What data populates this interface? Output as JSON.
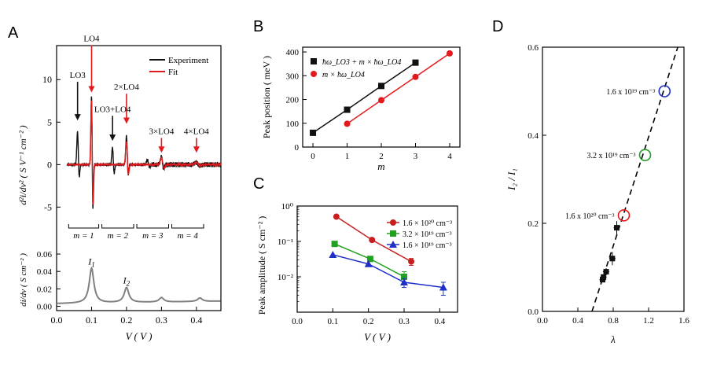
{
  "panels": {
    "a": "A",
    "b": "B",
    "c": "C",
    "d": "D"
  },
  "colors": {
    "black": "#111111",
    "red": "#e31a1c",
    "green": "#22a022",
    "blue": "#1f2fc8",
    "gray": "#808080"
  },
  "chart_data": [
    {
      "panel": "A (top)",
      "type": "line",
      "ylabel": "d²i/dv² ( S V⁻¹ cm⁻² )",
      "xlim": [
        0.0,
        0.47
      ],
      "ylim": [
        -7,
        14
      ],
      "yticks": [
        "-5",
        "0",
        "5",
        "10"
      ],
      "legend": [
        "Experiment",
        "Fit"
      ],
      "legend_position": "top-right",
      "series": [
        {
          "name": "Experiment",
          "color": "#111111",
          "peaks": [
            [
              0.06,
              4.0,
              0.003,
              -1.8
            ],
            [
              0.1,
              8.5,
              0.0025,
              -6.0
            ],
            [
              0.16,
              2.1,
              0.003,
              -1.2
            ],
            [
              0.2,
              3.5,
              0.003,
              -1.5
            ],
            [
              0.26,
              0.6,
              0.004,
              -0.4
            ],
            [
              0.3,
              1.0,
              0.004,
              -0.6
            ],
            [
              0.4,
              0.3,
              0.006,
              -0.2
            ]
          ]
        },
        {
          "name": "Fit",
          "color": "#e31a1c",
          "peaks": [
            [
              0.1,
              8.0,
              0.0028,
              -5.6
            ],
            [
              0.2,
              2.8,
              0.0035,
              -1.4
            ],
            [
              0.3,
              0.8,
              0.005,
              -0.5
            ],
            [
              0.4,
              0.25,
              0.007,
              -0.15
            ]
          ]
        }
      ],
      "annotations": [
        {
          "text": "LO4",
          "x": 0.1,
          "y": 14.5,
          "color": "#e31a1c",
          "arrow_to": 8.5
        },
        {
          "text": "LO3",
          "x": 0.06,
          "y": 10.2,
          "color": "#111111",
          "arrow_to": 5.2
        },
        {
          "text": "2×LO4",
          "x": 0.2,
          "y": 8.8,
          "color": "#e31a1c",
          "arrow_to": 4.8
        },
        {
          "text": "LO3+LO4",
          "x": 0.16,
          "y": 6.2,
          "color": "#111111",
          "arrow_to": 2.8
        },
        {
          "text": "3×LO4",
          "x": 0.3,
          "y": 3.6,
          "color": "#e31a1c",
          "arrow_to": 1.4
        },
        {
          "text": "4×LO4",
          "x": 0.4,
          "y": 3.6,
          "color": "#e31a1c",
          "arrow_to": 1.4
        }
      ],
      "brackets": [
        {
          "label": "m = 1",
          "x0": 0.03,
          "x1": 0.125
        },
        {
          "label": "m = 2",
          "x0": 0.125,
          "x1": 0.225
        },
        {
          "label": "m = 3",
          "x0": 0.225,
          "x1": 0.325
        },
        {
          "label": "m = 4",
          "x0": 0.325,
          "x1": 0.425
        }
      ]
    },
    {
      "panel": "A (bottom)",
      "type": "line",
      "xlabel": "V ( V )",
      "ylabel": "di/dv ( S cm⁻² )",
      "xlim": [
        0.0,
        0.47
      ],
      "ylim": [
        -0.005,
        0.07
      ],
      "xticks": [
        "0.0",
        "0.1",
        "0.2",
        "0.3",
        "0.4"
      ],
      "yticks": [
        "0.00",
        "0.02",
        "0.04",
        "0.06"
      ],
      "series": [
        {
          "name": "",
          "color": "#808080",
          "baseline": 0.003,
          "peaks": [
            [
              0.1,
              0.04
            ],
            [
              0.2,
              0.017
            ],
            [
              0.3,
              0.005
            ],
            [
              0.41,
              0.004
            ]
          ]
        }
      ],
      "annotations": [
        {
          "text": "I",
          "sub": "1",
          "x": 0.1,
          "y": 0.048
        },
        {
          "text": "I",
          "sub": "2",
          "x": 0.2,
          "y": 0.026
        }
      ]
    },
    {
      "panel": "B",
      "type": "line",
      "xlabel": "m",
      "ylabel": "Peak position ( meV )",
      "xlim": [
        -0.3,
        4.3
      ],
      "ylim": [
        0,
        420
      ],
      "xticks": [
        0,
        1,
        2,
        3,
        4
      ],
      "yticks": [
        0,
        100,
        200,
        300,
        400
      ],
      "legend_position": "top-left",
      "series": [
        {
          "name": "ħω_LO3 + m × ħω_LO4",
          "color": "#111111",
          "marker": "square",
          "x": [
            0,
            1,
            2,
            3
          ],
          "y": [
            60,
            157,
            257,
            355
          ]
        },
        {
          "name": "m × ħω_LO4",
          "color": "#e31a1c",
          "marker": "circle",
          "x": [
            1,
            2,
            3,
            4
          ],
          "y": [
            98,
            197,
            295,
            394
          ]
        }
      ]
    },
    {
      "panel": "C",
      "type": "line",
      "xlabel": "V ( V )",
      "ylabel": "Peak amplitude ( S cm⁻² )",
      "xlim": [
        0.0,
        0.45
      ],
      "yscale": "log",
      "ylim": [
        0.001,
        1
      ],
      "xticks": [
        "0.0",
        "0.1",
        "0.2",
        "0.3",
        "0.4"
      ],
      "yticks": [
        "10⁻³",
        "10⁻²",
        "10⁻¹",
        "10⁰"
      ],
      "legend_position": "top-right",
      "series": [
        {
          "name": "1.6 × 10²⁰ cm⁻³",
          "color": "#c81e1e",
          "marker": "circle",
          "x": [
            0.11,
            0.21,
            0.32
          ],
          "y": [
            0.5,
            0.11,
            0.027
          ],
          "err": [
            0,
            0,
            0.006
          ]
        },
        {
          "name": "3.2 × 10¹⁹ cm⁻³",
          "color": "#22a022",
          "marker": "square",
          "x": [
            0.105,
            0.205,
            0.3
          ],
          "y": [
            0.085,
            0.032,
            0.01
          ],
          "err": [
            0,
            0,
            0.004
          ]
        },
        {
          "name": "1.6 × 10¹⁹ cm⁻³",
          "color": "#1f2fc8",
          "marker": "triangle",
          "x": [
            0.1,
            0.2,
            0.3,
            0.41
          ],
          "y": [
            0.042,
            0.023,
            0.007,
            0.005
          ],
          "err": [
            0,
            0,
            0.002,
            0.002
          ]
        }
      ]
    },
    {
      "panel": "D",
      "type": "scatter",
      "xlabel": "λ",
      "ylabel": "I₂ / I₁",
      "xlim": [
        0.0,
        1.6
      ],
      "ylim": [
        0.0,
        0.6
      ],
      "xticks": [
        "0.0",
        "0.4",
        "0.8",
        "1.2",
        "1.6"
      ],
      "yticks": [
        "0.0",
        "0.2",
        "0.4",
        "0.6"
      ],
      "fit_line": {
        "x0": 0.56,
        "y0": 0.0,
        "x1": 1.53,
        "y1": 0.6
      },
      "points": [
        {
          "x": 0.68,
          "y": 0.072
        },
        {
          "x": 0.69,
          "y": 0.078
        },
        {
          "x": 0.72,
          "y": 0.09
        },
        {
          "x": 0.79,
          "y": 0.12
        },
        {
          "x": 0.84,
          "y": 0.19
        }
      ],
      "point_errors": [
        0.006,
        0.006,
        0.008,
        0.015,
        0.015
      ],
      "highlights": [
        {
          "label": "1.6 x 10¹⁹ cm⁻³",
          "x": 1.38,
          "y": 0.5,
          "color": "#1f2fc8"
        },
        {
          "label": "3.2 x 10¹⁹ cm⁻³",
          "x": 1.16,
          "y": 0.355,
          "color": "#22a022"
        },
        {
          "label": "1.6 x 10²⁰ cm⁻³",
          "x": 0.92,
          "y": 0.218,
          "color": "#e31a1c"
        }
      ]
    }
  ]
}
